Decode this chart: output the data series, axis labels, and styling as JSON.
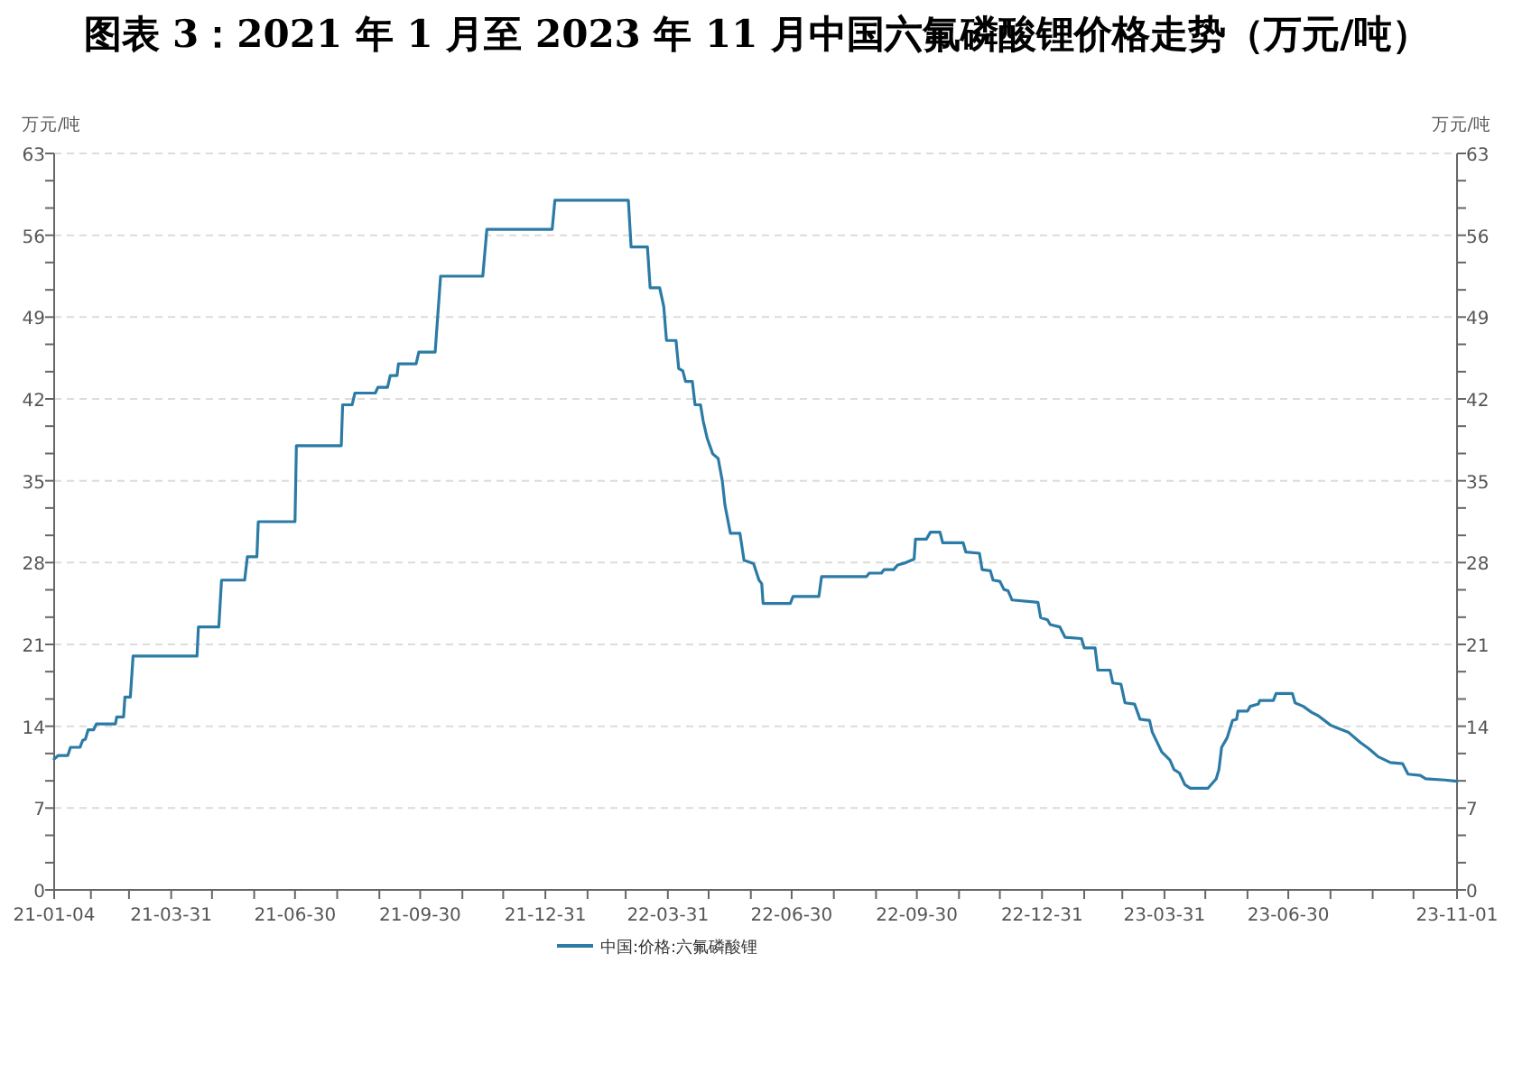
{
  "chart_data": {
    "type": "line",
    "title": "图表 3：2021 年 1 月至 2023 年 11 月中国六氟磷酸锂价格走势（万元/吨）",
    "ylabel": "万元/吨",
    "y2label": "万元/吨",
    "x": [
      "2021-01-04",
      "2021-01-07",
      "2021-01-14",
      "2021-01-16",
      "2021-01-23",
      "2021-01-25",
      "2021-01-27",
      "2021-01-29",
      "2021-02-02",
      "2021-02-04",
      "2021-02-18",
      "2021-02-19",
      "2021-02-24",
      "2021-02-25",
      "2021-03-01",
      "2021-03-03",
      "2021-04-19",
      "2021-04-20",
      "2021-05-05",
      "2021-05-07",
      "2021-05-24",
      "2021-05-26",
      "2021-06-02",
      "2021-06-03",
      "2021-06-30",
      "2021-07-01",
      "2021-08-03",
      "2021-08-04",
      "2021-08-11",
      "2021-08-13",
      "2021-08-28",
      "2021-08-30",
      "2021-09-06",
      "2021-09-08",
      "2021-09-13",
      "2021-09-14",
      "2021-09-27",
      "2021-09-29",
      "2021-10-11",
      "2021-10-15",
      "2021-11-15",
      "2021-11-18",
      "2022-01-05",
      "2022-01-07",
      "2022-03-02",
      "2022-03-04",
      "2022-03-16",
      "2022-03-18",
      "2022-03-25",
      "2022-03-28",
      "2022-03-30",
      "2022-04-06",
      "2022-04-08",
      "2022-04-11",
      "2022-04-13",
      "2022-04-18",
      "2022-04-20",
      "2022-04-24",
      "2022-04-26",
      "2022-04-29",
      "2022-05-03",
      "2022-05-07",
      "2022-05-10",
      "2022-05-12",
      "2022-05-16",
      "2022-05-23",
      "2022-05-26",
      "2022-06-02",
      "2022-06-06",
      "2022-06-08",
      "2022-06-09",
      "2022-06-29",
      "2022-07-01",
      "2022-07-20",
      "2022-07-22",
      "2022-08-24",
      "2022-08-26",
      "2022-09-04",
      "2022-09-06",
      "2022-09-13",
      "2022-09-16",
      "2022-09-22",
      "2022-09-28",
      "2022-09-29",
      "2022-10-07",
      "2022-10-10",
      "2022-10-17",
      "2022-10-19",
      "2022-11-03",
      "2022-11-05",
      "2022-11-15",
      "2022-11-17",
      "2022-11-23",
      "2022-11-25",
      "2022-11-30",
      "2022-12-03",
      "2022-12-06",
      "2022-12-09",
      "2022-12-28",
      "2022-12-30",
      "2023-01-04",
      "2023-01-06",
      "2023-01-13",
      "2023-01-17",
      "2023-01-29",
      "2023-01-31",
      "2023-02-08",
      "2023-02-10",
      "2023-02-19",
      "2023-02-21",
      "2023-02-27",
      "2023-03-02",
      "2023-03-09",
      "2023-03-13",
      "2023-03-20",
      "2023-03-22",
      "2023-03-29",
      "2023-04-04",
      "2023-04-07",
      "2023-04-11",
      "2023-04-15",
      "2023-04-19",
      "2023-05-02",
      "2023-05-08",
      "2023-05-10",
      "2023-05-12",
      "2023-05-16",
      "2023-05-20",
      "2023-05-23",
      "2023-05-24",
      "2023-05-31",
      "2023-06-02",
      "2023-06-08",
      "2023-06-09",
      "2023-06-19",
      "2023-06-21",
      "2023-07-03",
      "2023-07-05",
      "2023-07-11",
      "2023-07-17",
      "2023-07-22",
      "2023-07-31",
      "2023-08-04",
      "2023-08-13",
      "2023-08-22",
      "2023-08-28",
      "2023-09-04",
      "2023-09-13",
      "2023-09-22",
      "2023-09-26",
      "2023-10-05",
      "2023-10-09",
      "2023-10-23",
      "2023-11-01"
    ],
    "series": [
      {
        "name": "中国:价格:六氟磷酸锂",
        "color": "#2b7ba6",
        "values": [
          11.2,
          11.5,
          11.5,
          12.2,
          12.2,
          12.8,
          12.9,
          13.7,
          13.7,
          14.2,
          14.2,
          14.8,
          14.8,
          16.5,
          16.5,
          20.0,
          20.0,
          22.5,
          22.5,
          26.5,
          26.5,
          28.5,
          28.5,
          31.5,
          31.5,
          38.0,
          38.0,
          41.5,
          41.5,
          42.5,
          42.5,
          43.0,
          43.0,
          44.0,
          44.0,
          45.0,
          45.0,
          46.0,
          46.0,
          52.5,
          52.5,
          56.5,
          56.5,
          59.0,
          59.0,
          55.0,
          55.0,
          51.5,
          51.5,
          49.9,
          47.0,
          47.0,
          44.6,
          44.4,
          43.5,
          43.5,
          41.5,
          41.5,
          40.1,
          38.6,
          37.3,
          36.9,
          35.0,
          32.9,
          30.5,
          30.5,
          28.2,
          27.9,
          26.5,
          26.2,
          24.5,
          24.5,
          25.1,
          25.1,
          26.8,
          26.8,
          27.1,
          27.1,
          27.4,
          27.4,
          27.8,
          28.0,
          28.3,
          30.0,
          30.0,
          30.6,
          30.6,
          29.7,
          29.7,
          28.9,
          28.8,
          27.4,
          27.3,
          26.5,
          26.4,
          25.7,
          25.6,
          24.8,
          24.6,
          23.3,
          23.1,
          22.7,
          22.5,
          21.6,
          21.5,
          20.7,
          20.7,
          18.8,
          18.8,
          17.7,
          17.6,
          16.0,
          15.9,
          14.6,
          14.5,
          13.5,
          11.8,
          11.1,
          10.3,
          10.0,
          9.0,
          8.7,
          8.7,
          9.5,
          10.3,
          12.2,
          13.0,
          14.5,
          14.6,
          15.3,
          15.3,
          15.7,
          15.9,
          16.2,
          16.2,
          16.8,
          16.8,
          16.0,
          15.7,
          15.2,
          14.9,
          14.1,
          13.9,
          13.5,
          12.6,
          12.1,
          11.4,
          10.9,
          10.8,
          9.9,
          9.8,
          9.5,
          9.4,
          9.3
        ]
      }
    ],
    "xlim": [
      "2021-01-04",
      "2023-11-01"
    ],
    "xticks": [
      {
        "value": "2021-01-04",
        "label": "21-01-04"
      },
      {
        "value": "2021-01-31",
        "label": null
      },
      {
        "value": "2021-02-28",
        "label": null
      },
      {
        "value": "2021-03-31",
        "label": "21-03-31"
      },
      {
        "value": "2021-04-30",
        "label": null
      },
      {
        "value": "2021-05-31",
        "label": null
      },
      {
        "value": "2021-06-30",
        "label": "21-06-30"
      },
      {
        "value": "2021-07-31",
        "label": null
      },
      {
        "value": "2021-08-31",
        "label": null
      },
      {
        "value": "2021-09-30",
        "label": "21-09-30"
      },
      {
        "value": "2021-10-31",
        "label": null
      },
      {
        "value": "2021-11-30",
        "label": null
      },
      {
        "value": "2021-12-31",
        "label": "21-12-31"
      },
      {
        "value": "2022-01-31",
        "label": null
      },
      {
        "value": "2022-02-28",
        "label": null
      },
      {
        "value": "2022-03-31",
        "label": "22-03-31"
      },
      {
        "value": "2022-04-30",
        "label": null
      },
      {
        "value": "2022-05-31",
        "label": null
      },
      {
        "value": "2022-06-30",
        "label": "22-06-30"
      },
      {
        "value": "2022-07-31",
        "label": null
      },
      {
        "value": "2022-08-31",
        "label": null
      },
      {
        "value": "2022-09-30",
        "label": "22-09-30"
      },
      {
        "value": "2022-10-31",
        "label": null
      },
      {
        "value": "2022-11-30",
        "label": null
      },
      {
        "value": "2022-12-31",
        "label": "22-12-31"
      },
      {
        "value": "2023-01-31",
        "label": null
      },
      {
        "value": "2023-02-28",
        "label": null
      },
      {
        "value": "2023-03-31",
        "label": "23-03-31"
      },
      {
        "value": "2023-04-30",
        "label": null
      },
      {
        "value": "2023-05-31",
        "label": null
      },
      {
        "value": "2023-06-30",
        "label": "23-06-30"
      },
      {
        "value": "2023-07-31",
        "label": null
      },
      {
        "value": "2023-08-31",
        "label": null
      },
      {
        "value": "2023-09-30",
        "label": null
      },
      {
        "value": "2023-11-01",
        "label": "23-11-01"
      }
    ],
    "ylim": [
      0,
      63
    ],
    "yticks": [
      0,
      {
        "value": 2.33,
        "label": null
      },
      {
        "value": 4.67,
        "label": null
      },
      7,
      {
        "value": 9.33,
        "label": null
      },
      {
        "value": 11.67,
        "label": null
      },
      14,
      {
        "value": 16.33,
        "label": null
      },
      {
        "value": 18.67,
        "label": null
      },
      21,
      {
        "value": 23.33,
        "label": null
      },
      {
        "value": 25.67,
        "label": null
      },
      28,
      {
        "value": 30.33,
        "label": null
      },
      {
        "value": 32.67,
        "label": null
      },
      35,
      {
        "value": 37.33,
        "label": null
      },
      {
        "value": 39.67,
        "label": null
      },
      42,
      {
        "value": 44.33,
        "label": null
      },
      {
        "value": 46.67,
        "label": null
      },
      49,
      {
        "value": 51.33,
        "label": null
      },
      {
        "value": 53.67,
        "label": null
      },
      56,
      {
        "value": 58.33,
        "label": null
      },
      {
        "value": 60.67,
        "label": null
      },
      63
    ],
    "y2lim": [
      0,
      63
    ],
    "y2ticks": [
      0,
      {
        "value": 2.33,
        "label": null
      },
      {
        "value": 4.67,
        "label": null
      },
      7,
      {
        "value": 9.33,
        "label": null
      },
      {
        "value": 11.67,
        "label": null
      },
      14,
      {
        "value": 16.33,
        "label": null
      },
      {
        "value": 18.67,
        "label": null
      },
      21,
      {
        "value": 23.33,
        "label": null
      },
      {
        "value": 25.67,
        "label": null
      },
      28,
      {
        "value": 30.33,
        "label": null
      },
      {
        "value": 32.67,
        "label": null
      },
      35,
      {
        "value": 37.33,
        "label": null
      },
      {
        "value": 39.67,
        "label": null
      },
      42,
      {
        "value": 44.33,
        "label": null
      },
      {
        "value": 46.67,
        "label": null
      },
      49,
      {
        "value": 51.33,
        "label": null
      },
      {
        "value": 53.67,
        "label": null
      },
      56,
      {
        "value": 58.33,
        "label": null
      },
      {
        "value": 60.67,
        "label": null
      },
      63
    ],
    "grid": "y",
    "legend": "bottom"
  }
}
